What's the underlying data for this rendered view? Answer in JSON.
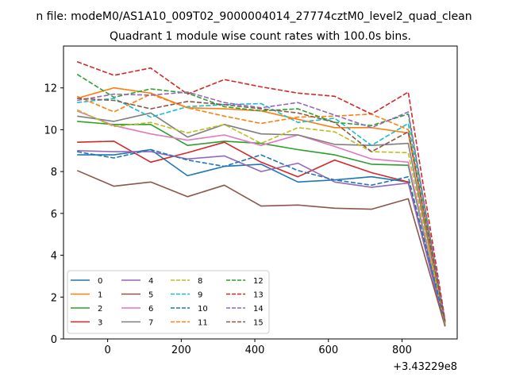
{
  "chart_data": {
    "type": "line",
    "suptitle": "n file: modeM0/AS1A10_009T02_9000004014_27774cztM0_level2_quad_clean",
    "title": "Quadrant 1 module wise count rates with 100.0s bins.",
    "xlabel": "",
    "ylabel": "",
    "x_offset_label": "+3.43229e8",
    "xlim": [
      -120,
      950
    ],
    "ylim": [
      0,
      14
    ],
    "xticks": [
      0,
      200,
      400,
      600,
      800
    ],
    "yticks": [
      0,
      2,
      4,
      6,
      8,
      10,
      12
    ],
    "x": [
      -83,
      17,
      117,
      217,
      317,
      417,
      517,
      617,
      717,
      817,
      917
    ],
    "legend": {
      "position": "lower-left",
      "columns": 4
    },
    "series": [
      {
        "name": "0",
        "color": "#1f77b4",
        "dash": "solid",
        "values": [
          8.8,
          8.8,
          9.05,
          7.8,
          8.25,
          8.35,
          7.5,
          7.6,
          7.75,
          7.5,
          0.6
        ]
      },
      {
        "name": "1",
        "color": "#ff7f0e",
        "dash": "solid",
        "values": [
          11.5,
          12.0,
          11.75,
          11.05,
          11.0,
          10.9,
          10.5,
          10.1,
          10.1,
          9.85,
          0.7
        ]
      },
      {
        "name": "2",
        "color": "#2ca02c",
        "dash": "solid",
        "values": [
          10.4,
          10.25,
          10.25,
          9.25,
          9.45,
          9.35,
          9.05,
          8.8,
          8.35,
          8.3,
          0.65
        ]
      },
      {
        "name": "3",
        "color": "#d62728",
        "dash": "solid",
        "values": [
          9.4,
          9.45,
          8.45,
          8.9,
          9.4,
          8.45,
          7.75,
          8.55,
          7.95,
          7.5,
          0.75
        ]
      },
      {
        "name": "4",
        "color": "#9467bd",
        "dash": "solid",
        "values": [
          9.0,
          8.95,
          8.95,
          8.6,
          8.75,
          8.0,
          8.4,
          7.5,
          7.25,
          7.45,
          0.65
        ]
      },
      {
        "name": "5",
        "color": "#8c564b",
        "dash": "solid",
        "values": [
          8.05,
          7.3,
          7.5,
          6.8,
          7.35,
          6.35,
          6.4,
          6.25,
          6.2,
          6.7,
          0.6
        ]
      },
      {
        "name": "6",
        "color": "#e377c2",
        "dash": "solid",
        "values": [
          10.9,
          10.2,
          9.8,
          9.5,
          9.75,
          9.25,
          9.75,
          9.2,
          8.6,
          8.45,
          0.7
        ]
      },
      {
        "name": "7",
        "color": "#7f7f7f",
        "dash": "solid",
        "values": [
          10.65,
          10.4,
          10.8,
          9.65,
          10.25,
          9.8,
          9.75,
          9.3,
          9.25,
          9.35,
          0.65
        ]
      },
      {
        "name": "8",
        "color": "#bcbd22",
        "dash": "dashed",
        "values": [
          10.95,
          10.15,
          10.35,
          9.85,
          10.25,
          9.35,
          10.1,
          9.9,
          8.95,
          8.9,
          0.7
        ]
      },
      {
        "name": "9",
        "color": "#17becf",
        "dash": "dashed",
        "values": [
          11.3,
          11.5,
          10.6,
          11.1,
          11.2,
          11.25,
          10.35,
          10.55,
          9.25,
          10.3,
          0.75
        ]
      },
      {
        "name": "10",
        "color": "#1f77b4",
        "dash": "dashed",
        "values": [
          8.95,
          8.65,
          9.05,
          8.55,
          8.25,
          8.8,
          8.05,
          7.6,
          7.35,
          7.75,
          0.8
        ]
      },
      {
        "name": "11",
        "color": "#ff7f0e",
        "dash": "dashed",
        "values": [
          11.6,
          10.85,
          11.7,
          11.05,
          10.65,
          10.3,
          10.6,
          10.65,
          10.75,
          10.0,
          0.75
        ]
      },
      {
        "name": "12",
        "color": "#2ca02c",
        "dash": "dashed",
        "values": [
          12.65,
          11.55,
          11.95,
          11.75,
          11.1,
          10.9,
          11.0,
          10.35,
          10.2,
          10.75,
          0.8
        ]
      },
      {
        "name": "13",
        "color": "#d62728",
        "dash": "dashed",
        "values": [
          13.25,
          12.6,
          12.95,
          11.7,
          12.4,
          12.05,
          11.75,
          11.6,
          10.75,
          11.8,
          0.9
        ]
      },
      {
        "name": "14",
        "color": "#9467bd",
        "dash": "dashed",
        "values": [
          11.4,
          11.7,
          11.65,
          11.8,
          11.3,
          11.05,
          11.3,
          10.7,
          10.1,
          10.85,
          0.85
        ]
      },
      {
        "name": "15",
        "color": "#8c564b",
        "dash": "dashed",
        "values": [
          11.5,
          11.4,
          11.0,
          11.35,
          11.2,
          11.0,
          10.8,
          10.35,
          8.95,
          9.9,
          0.85
        ]
      }
    ]
  }
}
